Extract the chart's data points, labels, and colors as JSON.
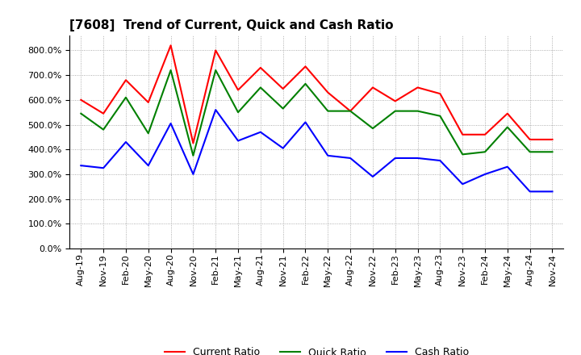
{
  "title": "[7608]  Trend of Current, Quick and Cash Ratio",
  "labels": [
    "Aug-19",
    "Nov-19",
    "Feb-20",
    "May-20",
    "Aug-20",
    "Nov-20",
    "Feb-21",
    "May-21",
    "Aug-21",
    "Nov-21",
    "Feb-22",
    "May-22",
    "Aug-22",
    "Nov-22",
    "Feb-23",
    "May-23",
    "Aug-23",
    "Nov-23",
    "Feb-24",
    "May-24",
    "Aug-24",
    "Nov-24"
  ],
  "current_ratio": [
    600,
    545,
    680,
    590,
    820,
    425,
    800,
    640,
    730,
    645,
    735,
    630,
    555,
    650,
    595,
    650,
    625,
    460,
    460,
    545,
    440,
    440
  ],
  "quick_ratio": [
    545,
    480,
    610,
    465,
    720,
    375,
    720,
    550,
    650,
    565,
    665,
    555,
    555,
    485,
    555,
    555,
    535,
    380,
    390,
    490,
    390,
    390
  ],
  "cash_ratio": [
    335,
    325,
    430,
    335,
    505,
    300,
    560,
    435,
    470,
    405,
    510,
    375,
    365,
    290,
    365,
    365,
    355,
    260,
    300,
    330,
    230,
    230
  ],
  "ylim": [
    0,
    860
  ],
  "yticks": [
    0,
    100,
    200,
    300,
    400,
    500,
    600,
    700,
    800
  ],
  "line_colors": [
    "#FF0000",
    "#008000",
    "#0000FF"
  ],
  "legend_labels": [
    "Current Ratio",
    "Quick Ratio",
    "Cash Ratio"
  ],
  "background_color": "#FFFFFF",
  "grid_color": "#999999",
  "title_fontsize": 11,
  "tick_fontsize": 8,
  "legend_fontsize": 9
}
